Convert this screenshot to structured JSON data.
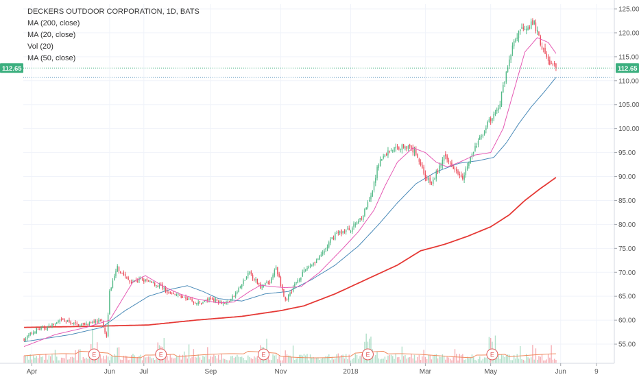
{
  "legend": {
    "title": "DECKERS OUTDOOR CORPORATION, 1D, BATS",
    "ma200": "MA (200, close)",
    "ma20": "MA (20, close)",
    "vol": "Vol (20)",
    "ma50": "MA (50, close)"
  },
  "last_price_label": "112.65",
  "colors": {
    "up": "#53b987",
    "down": "#eb4d5c",
    "ma200": "#e53935",
    "ma20": "#e55ab4",
    "ma50": "#4a8ab8",
    "badge": "#3caf7f",
    "grid": "#f0f3fa"
  },
  "chart_data": {
    "type": "candlestick",
    "y_axis": {
      "min": 51,
      "max": 126,
      "ticks": [
        "125.00",
        "120.00",
        "115.00",
        "110.00",
        "105.00",
        "100.00",
        "95.00",
        "90.00",
        "85.00",
        "80.00",
        "75.00",
        "70.00",
        "65.00",
        "60.00",
        "55.00"
      ],
      "tick_values": [
        125,
        120,
        115,
        110,
        105,
        100,
        95,
        90,
        85,
        80,
        75,
        70,
        65,
        60,
        55
      ]
    },
    "x_axis": {
      "labels": [
        "Apr",
        "Jun",
        "Jul",
        "Sep",
        "Nov",
        "2018",
        "Mar",
        "May",
        "Jun",
        "9"
      ],
      "label_days": [
        5,
        55,
        77,
        120,
        165,
        210,
        258,
        300,
        345,
        368
      ]
    },
    "total_days": 380,
    "last_price": 112.65,
    "earnings_days": [
      45,
      88,
      154,
      221,
      301
    ],
    "earnings_label": "E",
    "price_anchors": [
      [
        0,
        56
      ],
      [
        8,
        58
      ],
      [
        15,
        58.5
      ],
      [
        25,
        60
      ],
      [
        35,
        59
      ],
      [
        45,
        59.5
      ],
      [
        50,
        60
      ],
      [
        53,
        56.5
      ],
      [
        55,
        66
      ],
      [
        60,
        71
      ],
      [
        68,
        68
      ],
      [
        75,
        68.5
      ],
      [
        80,
        68
      ],
      [
        88,
        67
      ],
      [
        95,
        65.5
      ],
      [
        105,
        64.5
      ],
      [
        112,
        63.5
      ],
      [
        120,
        64.5
      ],
      [
        130,
        63.5
      ],
      [
        135,
        65
      ],
      [
        145,
        70
      ],
      [
        152,
        67
      ],
      [
        158,
        68
      ],
      [
        162,
        71
      ],
      [
        168,
        64
      ],
      [
        175,
        68
      ],
      [
        182,
        71
      ],
      [
        190,
        73
      ],
      [
        200,
        78
      ],
      [
        210,
        79
      ],
      [
        218,
        82
      ],
      [
        224,
        87
      ],
      [
        228,
        93
      ],
      [
        235,
        95.5
      ],
      [
        245,
        96.5
      ],
      [
        252,
        95
      ],
      [
        258,
        90
      ],
      [
        262,
        88.5
      ],
      [
        270,
        94
      ],
      [
        275,
        92.5
      ],
      [
        282,
        90
      ],
      [
        290,
        96
      ],
      [
        298,
        101
      ],
      [
        305,
        104
      ],
      [
        310,
        112
      ],
      [
        315,
        118
      ],
      [
        320,
        121
      ],
      [
        328,
        122
      ],
      [
        333,
        117
      ],
      [
        337,
        114
      ],
      [
        342,
        112.65
      ]
    ],
    "ma20_anchors": [
      [
        0,
        54.5
      ],
      [
        20,
        57
      ],
      [
        40,
        58.5
      ],
      [
        55,
        60
      ],
      [
        70,
        68
      ],
      [
        78,
        69.3
      ],
      [
        90,
        67
      ],
      [
        100,
        65.5
      ],
      [
        110,
        64.5
      ],
      [
        125,
        63.6
      ],
      [
        135,
        63.8
      ],
      [
        145,
        66
      ],
      [
        152,
        67.3
      ],
      [
        160,
        67
      ],
      [
        168,
        66.8
      ],
      [
        178,
        67
      ],
      [
        190,
        70
      ],
      [
        205,
        75
      ],
      [
        215,
        78.5
      ],
      [
        225,
        83
      ],
      [
        232,
        88
      ],
      [
        240,
        93
      ],
      [
        250,
        96
      ],
      [
        258,
        95
      ],
      [
        265,
        93
      ],
      [
        272,
        92
      ],
      [
        280,
        93
      ],
      [
        290,
        94.5
      ],
      [
        300,
        95
      ],
      [
        308,
        100
      ],
      [
        315,
        108
      ],
      [
        322,
        116
      ],
      [
        330,
        119
      ],
      [
        337,
        118
      ],
      [
        342,
        115.7
      ]
    ],
    "ma50_anchors": [
      [
        0,
        55.5
      ],
      [
        30,
        57
      ],
      [
        50,
        58.5
      ],
      [
        65,
        62
      ],
      [
        80,
        65
      ],
      [
        95,
        66.5
      ],
      [
        105,
        67.2
      ],
      [
        115,
        66
      ],
      [
        125,
        64.5
      ],
      [
        140,
        64
      ],
      [
        155,
        65.5
      ],
      [
        170,
        66
      ],
      [
        185,
        68.5
      ],
      [
        200,
        71.5
      ],
      [
        215,
        75.5
      ],
      [
        228,
        80
      ],
      [
        240,
        84.5
      ],
      [
        252,
        88.5
      ],
      [
        265,
        91
      ],
      [
        280,
        92.8
      ],
      [
        292,
        93.3
      ],
      [
        302,
        94
      ],
      [
        310,
        97
      ],
      [
        318,
        101
      ],
      [
        326,
        104.5
      ],
      [
        334,
        107.5
      ],
      [
        342,
        110.7
      ]
    ],
    "ma200_anchors": [
      [
        0,
        58.5
      ],
      [
        40,
        58.7
      ],
      [
        80,
        59
      ],
      [
        110,
        60
      ],
      [
        140,
        60.8
      ],
      [
        165,
        62
      ],
      [
        180,
        63
      ],
      [
        200,
        65.5
      ],
      [
        220,
        68.5
      ],
      [
        240,
        71.5
      ],
      [
        255,
        74.5
      ],
      [
        270,
        75.8
      ],
      [
        285,
        77.5
      ],
      [
        300,
        79.5
      ],
      [
        312,
        82
      ],
      [
        322,
        85
      ],
      [
        332,
        87.5
      ],
      [
        342,
        89.8
      ]
    ]
  }
}
